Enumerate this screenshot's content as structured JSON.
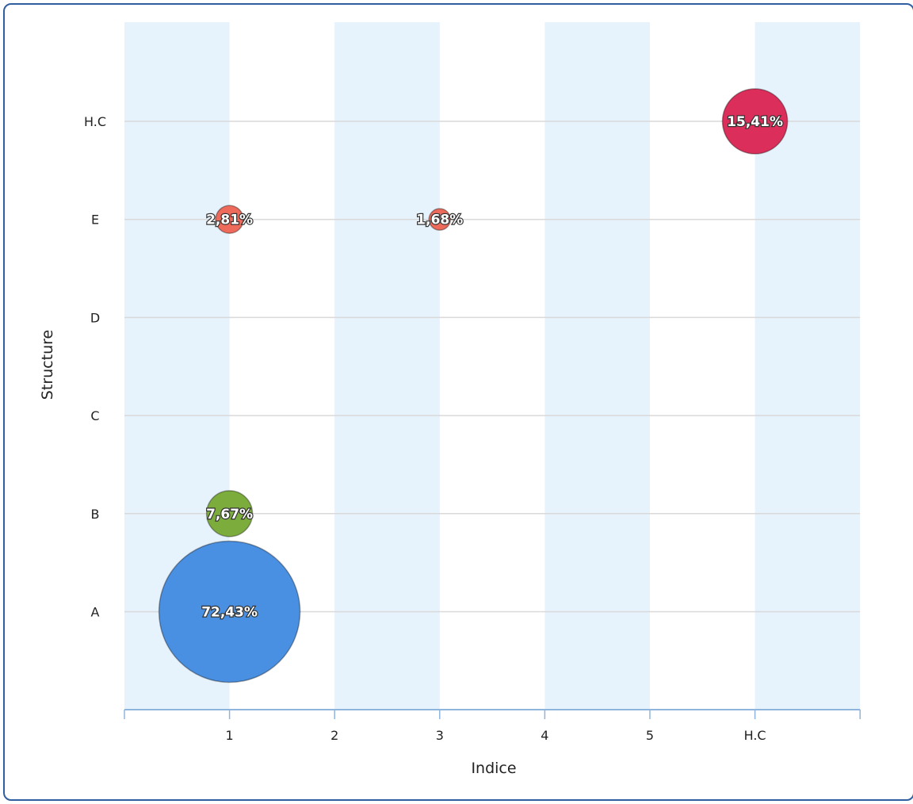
{
  "chart_data": {
    "type": "scatter",
    "subtype": "bubble",
    "xlabel": "Indice",
    "ylabel": "Structure",
    "x_categories": [
      "1",
      "2",
      "3",
      "4",
      "5",
      "H.C"
    ],
    "y_categories": [
      "A",
      "B",
      "C",
      "D",
      "E",
      "H.C"
    ],
    "grid": true,
    "column_band_color": "#e6f2fc",
    "points": [
      {
        "x": "1",
        "y": "A",
        "value": 72.43,
        "label": "72,43%",
        "color": "#4a90e2"
      },
      {
        "x": "1",
        "y": "B",
        "value": 7.67,
        "label": "7,67%",
        "color": "#7cad3c"
      },
      {
        "x": "1",
        "y": "E",
        "value": 2.81,
        "label": "2,81%",
        "color": "#ee6a5a"
      },
      {
        "x": "3",
        "y": "E",
        "value": 1.68,
        "label": "1,68%",
        "color": "#ee6a5a"
      },
      {
        "x": "H.C",
        "y": "H.C",
        "value": 15.41,
        "label": "15,41%",
        "color": "#dc2e5a"
      }
    ]
  }
}
